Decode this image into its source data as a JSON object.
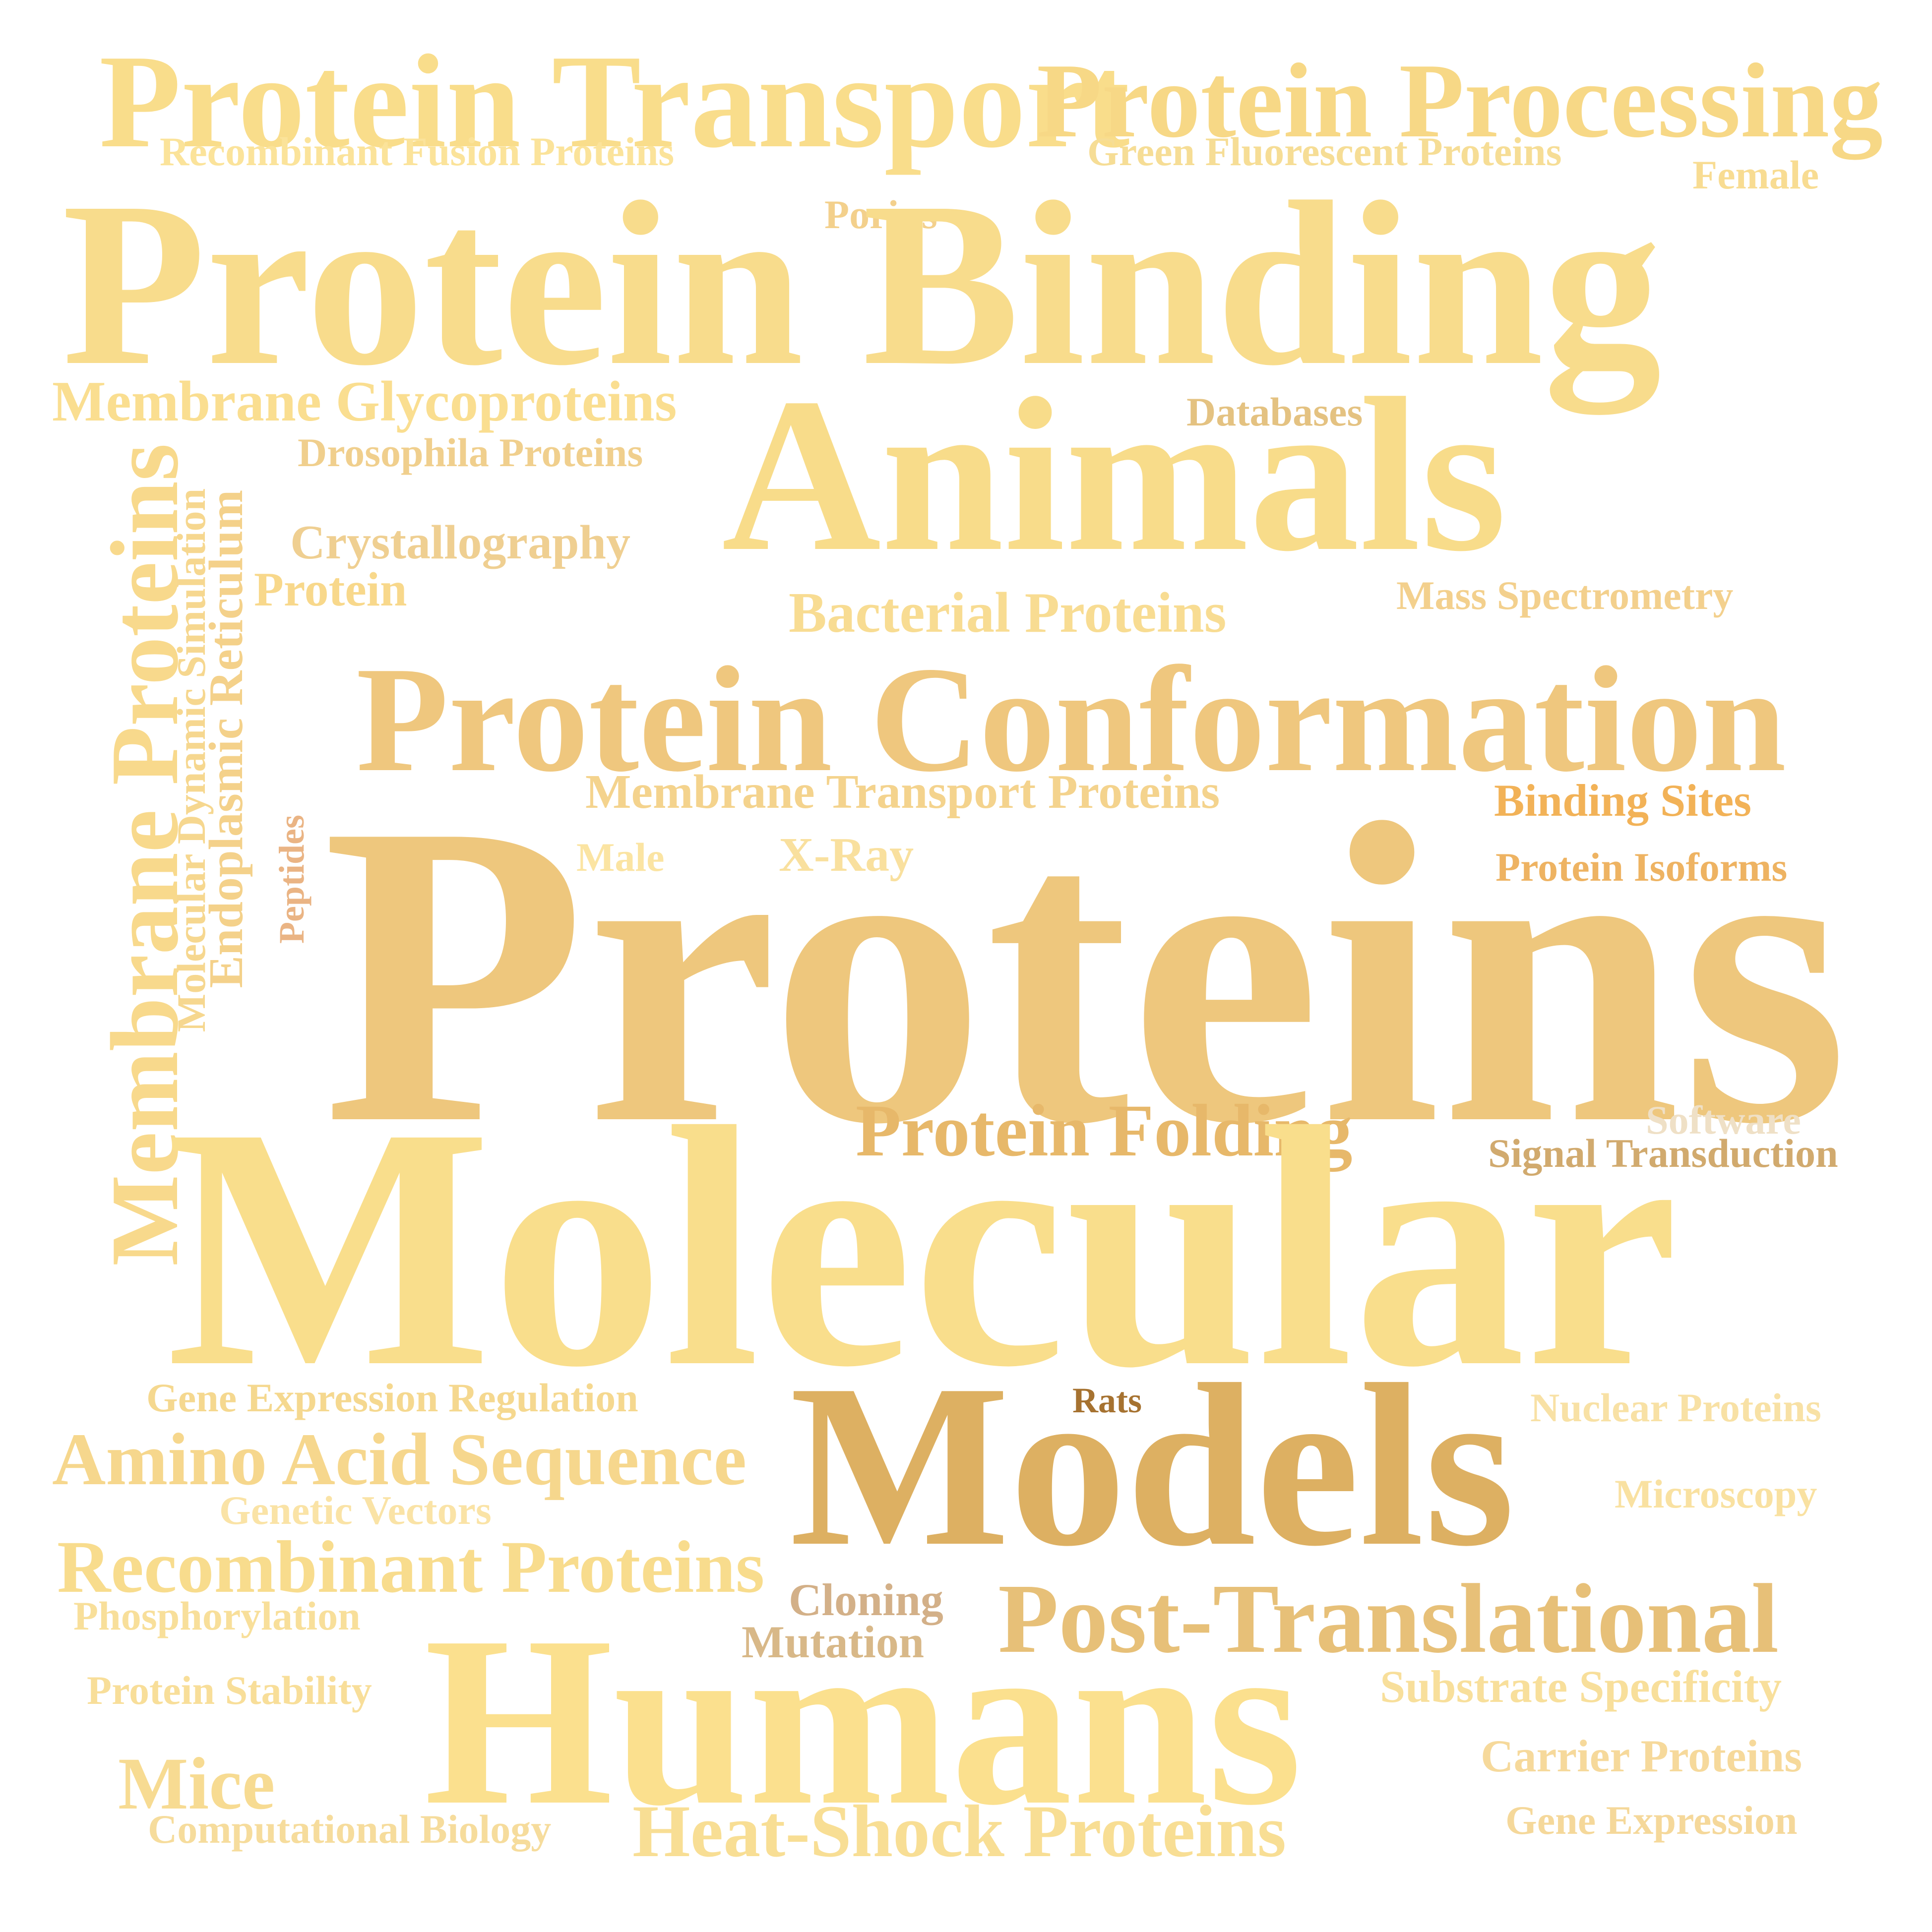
{
  "words": [
    {
      "text": "Protein Transport",
      "color": "#f9dd8b"
    },
    {
      "text": "Protein Processing",
      "color": "#f7d886"
    },
    {
      "text": "Recombinant Fusion Proteins",
      "color": "#fbe39a"
    },
    {
      "text": "Green Fluorescent Proteins",
      "color": "#f6dd95"
    },
    {
      "text": "Female",
      "color": "#f8dc92"
    },
    {
      "text": "Porins",
      "color": "#f3d08c"
    },
    {
      "text": "Protein Binding",
      "color": "#f8dc8c"
    },
    {
      "text": "Membrane Glycoproteins",
      "color": "#fade90"
    },
    {
      "text": "Databases",
      "color": "#e4c281"
    },
    {
      "text": "Drosophila Proteins",
      "color": "#f0cf8d"
    },
    {
      "text": "Animals",
      "color": "#f8dc8a"
    },
    {
      "text": "Crystallography",
      "color": "#efcf91"
    },
    {
      "text": "Protein",
      "color": "#f8d88b"
    },
    {
      "text": "Mass Spectrometry",
      "color": "#f3d08d"
    },
    {
      "text": "Bacterial Proteins",
      "color": "#f8dc92"
    },
    {
      "text": "Membrane Proteins",
      "color": "#f8d98c"
    },
    {
      "text": "Molecular Dynamic Simulation",
      "color": "#f6d78f"
    },
    {
      "text": "Endoplasmic Reticulum",
      "color": "#f4d18a"
    },
    {
      "text": "Protein Conformation",
      "color": "#efc77e"
    },
    {
      "text": "Membrane Transport Proteins",
      "color": "#f4d38d"
    },
    {
      "text": "Binding Sites",
      "color": "#f2b257"
    },
    {
      "text": "Peptides",
      "color": "#eab484"
    },
    {
      "text": "Male",
      "color": "#fbe4a2"
    },
    {
      "text": "X-Ray",
      "color": "#f9e09e"
    },
    {
      "text": "Protein Isoforms",
      "color": "#eeb362"
    },
    {
      "text": "Proteins",
      "color": "#eec77d"
    },
    {
      "text": "Protein Folding",
      "color": "#e7b86a"
    },
    {
      "text": "Software",
      "color": "#efe0c6"
    },
    {
      "text": "Signal Transduction",
      "color": "#d1aa6e"
    },
    {
      "text": "Molecular",
      "color": "#f9de8c"
    },
    {
      "text": "Gene Expression Regulation",
      "color": "#f5d88f"
    },
    {
      "text": "Rats",
      "color": "#a67230"
    },
    {
      "text": "Nuclear Proteins",
      "color": "#f8e1a5"
    },
    {
      "text": "Amino Acid Sequence",
      "color": "#f6d78d"
    },
    {
      "text": "Models",
      "color": "#ddb062"
    },
    {
      "text": "Genetic Vectors",
      "color": "#fae3a6"
    },
    {
      "text": "Microscopy",
      "color": "#f9e1a1"
    },
    {
      "text": "Recombinant Proteins",
      "color": "#f8dc8d"
    },
    {
      "text": "Cloning",
      "color": "#d3b088"
    },
    {
      "text": "Post-Translational",
      "color": "#e7c078"
    },
    {
      "text": "Phosphorylation",
      "color": "#f8df9a"
    },
    {
      "text": "Mutation",
      "color": "#d8b888"
    },
    {
      "text": "Humans",
      "color": "#fbe08e"
    },
    {
      "text": "Substrate Specificity",
      "color": "#f8df9b"
    },
    {
      "text": "Protein Stability",
      "color": "#f8de99"
    },
    {
      "text": "Carrier Proteins",
      "color": "#f6d99b"
    },
    {
      "text": "Mice",
      "color": "#f7db92"
    },
    {
      "text": "Computational Biology",
      "color": "#f6dc9c"
    },
    {
      "text": "Heat-Shock Proteins",
      "color": "#f8de94"
    },
    {
      "text": "Gene Expression",
      "color": "#f5d89a"
    }
  ]
}
